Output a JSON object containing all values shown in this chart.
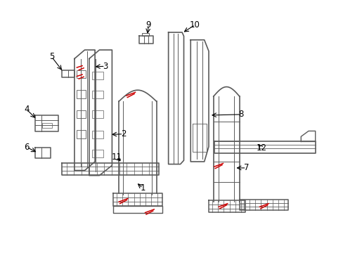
{
  "background_color": "#ffffff",
  "line_color": "#5a5a5a",
  "red_color": "#cc0000",
  "label_color": "#000000"
}
